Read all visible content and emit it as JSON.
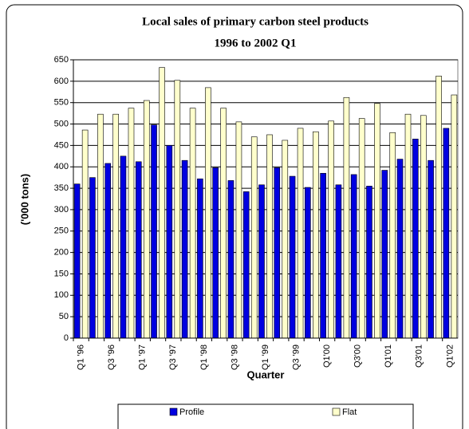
{
  "chart_data": {
    "type": "bar",
    "title": "Local sales of primary carbon steel products",
    "subtitle": "1996 to 2002 Q1",
    "x_label": "Quarter",
    "y_label": "('000 tons)",
    "categories": [
      "Q1 '96",
      null,
      "Q3 '96",
      null,
      "Q1 '97",
      null,
      "Q3 '97",
      null,
      "Q1 '98",
      null,
      "Q3 '98",
      null,
      "Q1 '99",
      null,
      "Q3 '99",
      null,
      "Q1'00",
      null,
      "Q3'00",
      null,
      "Q1'01",
      null,
      "Q3'01",
      null,
      "Q1'02"
    ],
    "series": [
      {
        "name": "Profile",
        "color": "#0000e0",
        "values": [
          360,
          375,
          408,
          425,
          412,
          498,
          450,
          415,
          372,
          398,
          368,
          342,
          358,
          398,
          378,
          352,
          385,
          358,
          382,
          355,
          392,
          418,
          465,
          415,
          490
        ]
      },
      {
        "name": "Flat",
        "color": "#ffffcc",
        "values": [
          486,
          523,
          523,
          537,
          555,
          632,
          602,
          537,
          585,
          537,
          505,
          470,
          475,
          462,
          490,
          482,
          507,
          562,
          513,
          548,
          480,
          523,
          520,
          612,
          568
        ]
      }
    ],
    "ylim": [
      0,
      650
    ],
    "yticks": [
      0,
      50,
      100,
      150,
      200,
      250,
      300,
      350,
      400,
      450,
      500,
      550,
      600,
      650
    ],
    "grid": true,
    "legend": "bottom"
  }
}
